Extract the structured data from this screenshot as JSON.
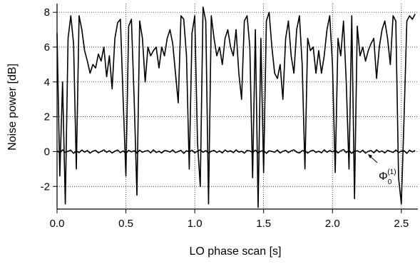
{
  "chart_data": {
    "type": "line",
    "xlabel": "LO phase scan [s]",
    "ylabel": "Noise power [dB]",
    "annotation": {
      "symbol": "Φ",
      "sub": "0",
      "sup": "(1)"
    },
    "xlim": [
      0,
      2.62
    ],
    "ylim": [
      -3.3,
      8.5
    ],
    "xticks": [
      {
        "value": 0,
        "label": "0.0"
      },
      0.5,
      {
        "value": 1,
        "label": "1.0"
      },
      1.5,
      {
        "value": 2,
        "label": "2.0"
      },
      2.5
    ],
    "yticks": [
      -2,
      0,
      2,
      4,
      6,
      8
    ],
    "grid": true,
    "x": [
      0,
      0.02,
      0.04,
      0.06,
      0.08,
      0.1,
      0.12,
      0.14,
      0.16,
      0.18,
      0.2,
      0.22,
      0.24,
      0.26,
      0.28,
      0.3,
      0.32,
      0.34,
      0.36,
      0.38,
      0.4,
      0.42,
      0.44,
      0.46,
      0.48,
      0.5,
      0.52,
      0.54,
      0.56,
      0.58,
      0.6,
      0.62,
      0.64,
      0.66,
      0.68,
      0.7,
      0.72,
      0.74,
      0.76,
      0.78,
      0.8,
      0.82,
      0.84,
      0.86,
      0.88,
      0.9,
      0.92,
      0.94,
      0.96,
      0.98,
      1,
      1.02,
      1.04,
      1.06,
      1.08,
      1.1,
      1.12,
      1.14,
      1.16,
      1.18,
      1.2,
      1.22,
      1.24,
      1.26,
      1.28,
      1.3,
      1.32,
      1.34,
      1.36,
      1.38,
      1.4,
      1.42,
      1.44,
      1.46,
      1.48,
      1.5,
      1.52,
      1.54,
      1.56,
      1.58,
      1.6,
      1.62,
      1.64,
      1.66,
      1.68,
      1.7,
      1.72,
      1.74,
      1.76,
      1.78,
      1.8,
      1.82,
      1.84,
      1.86,
      1.88,
      1.9,
      1.92,
      1.94,
      1.96,
      1.98,
      2,
      2.02,
      2.04,
      2.06,
      2.08,
      2.1,
      2.12,
      2.14,
      2.16,
      2.18,
      2.2,
      2.22,
      2.24,
      2.26,
      2.28,
      2.3,
      2.32,
      2.34,
      2.36,
      2.38,
      2.4,
      2.42,
      2.44,
      2.46,
      2.48,
      2.5,
      2.52,
      2.54,
      2.56,
      2.58,
      2.6
    ],
    "series": [
      {
        "color": "#000000",
        "values": [
          6.8,
          -1.4,
          4.0,
          -3.0,
          6.5,
          7.8,
          6.2,
          -1.0,
          7.8,
          7.0,
          5.8,
          5.2,
          4.5,
          5.0,
          4.8,
          5.6,
          5.2,
          6.0,
          4.3,
          5.5,
          3.6,
          6.5,
          7.4,
          7.6,
          3.0,
          -1.4,
          7.2,
          7.6,
          3.0,
          -2.5,
          7.5,
          6.5,
          4.0,
          6.0,
          5.5,
          5.8,
          6.0,
          4.8,
          6.0,
          5.5,
          6.5,
          7.0,
          6.2,
          4.5,
          2.8,
          7.8,
          7.6,
          5.5,
          -1.0,
          6.8,
          7.8,
          0.5,
          -2.0,
          8.3,
          7.5,
          -3.0,
          7.8,
          6.5,
          5.5,
          6.0,
          5.0,
          6.5,
          7.0,
          6.0,
          5.5,
          7.0,
          4.5,
          3.0,
          7.5,
          7.8,
          6.0,
          -1.5,
          7.0,
          -3.2,
          6.5,
          -1.2,
          7.5,
          8.0,
          6.0,
          4.5,
          4.2,
          5.0,
          3.0,
          6.5,
          7.5,
          5.5,
          4.5,
          7.0,
          7.8,
          5.0,
          -1.0,
          6.5,
          5.8,
          6.0,
          4.5,
          5.8,
          4.5,
          5.5,
          7.0,
          7.8,
          5.0,
          -1.2,
          6.5,
          5.5,
          7.5,
          4.0,
          -1.0,
          7.8,
          -2.7,
          7.2,
          5.5,
          6.0,
          5.2,
          5.8,
          6.2,
          6.5,
          4.2,
          6.0,
          7.0,
          7.5,
          6.5,
          5.0,
          7.8,
          7.5,
          -1.5,
          -3.0,
          2.0,
          7.5,
          7.8,
          7.6,
          7.9
        ]
      },
      {
        "color": "#000000",
        "values": [
          0.05,
          -0.08,
          0.1,
          -0.05,
          0.02,
          0.08,
          -0.1,
          0.04,
          -0.06,
          0.09,
          -0.03,
          0.06,
          -0.09,
          0.03,
          0.07,
          -0.07,
          0.01,
          0.1,
          -0.04,
          0.05,
          -0.08,
          0.02,
          0.09,
          -0.06,
          0.04,
          -0.1,
          0.07,
          -0.02,
          0.05,
          -0.09,
          0.08,
          -0.04,
          0.03,
          0.06,
          -0.07,
          0.1,
          -0.05,
          0.02,
          -0.08,
          0.06,
          0.04,
          -0.03,
          0.09,
          -0.06,
          0.01,
          0.07,
          -0.1,
          0.05,
          -0.02,
          0.08,
          -0.07,
          0.03,
          0.1,
          -0.04,
          0.06,
          -0.09,
          0.02,
          0.07,
          -0.05,
          0.04,
          -0.08,
          0.09,
          -0.01,
          0.05,
          -0.06,
          0.1,
          -0.03,
          0.02,
          -0.09,
          0.07,
          0.04,
          -0.05,
          0.08,
          -0.07,
          0.03,
          0.06,
          -0.1,
          0.05,
          0.01,
          -0.04,
          0.09,
          -0.08,
          0.02,
          0.07,
          -0.06,
          0.04,
          0.1,
          -0.03,
          -0.08,
          0.05,
          0.06,
          -0.09,
          0.03,
          0.08,
          -0.05,
          0.02,
          -0.07,
          0.1,
          -0.04,
          0.06,
          -0.02,
          0.09,
          -0.08,
          0.04,
          0.12,
          -0.06,
          0.07,
          -0.1,
          0.03,
          0.05,
          -0.04,
          0.08,
          -0.09,
          0.02,
          0.06,
          -0.07,
          0.1,
          -0.03,
          0.04,
          -0.08,
          0.07,
          0.01,
          -0.05,
          0.09,
          -0.06,
          0.03,
          0.05,
          -0.1,
          0.08,
          -0.02,
          0.06
        ]
      }
    ]
  }
}
